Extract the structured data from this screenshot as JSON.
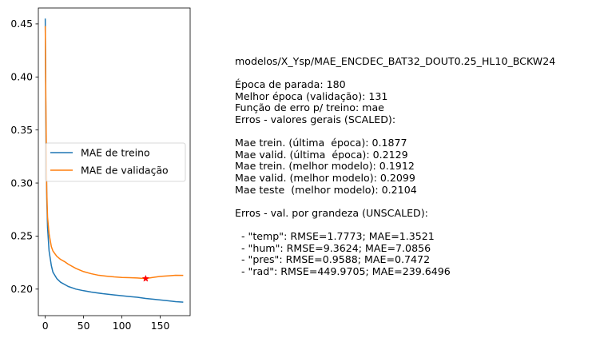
{
  "chart_data": {
    "type": "line",
    "title": "",
    "xlabel": "",
    "ylabel": "",
    "xlim": [
      -9,
      189
    ],
    "ylim": [
      0.175,
      0.465
    ],
    "x_ticks": [
      0,
      50,
      100,
      150
    ],
    "y_ticks": [
      0.2,
      0.25,
      0.3,
      0.35,
      0.4,
      0.45
    ],
    "y_tick_labels": [
      "0.20",
      "0.25",
      "0.30",
      "0.35",
      "0.40",
      "0.45"
    ],
    "grid": false,
    "legend_position": "center-left",
    "series": [
      {
        "name": "MAE de treino",
        "color": "#1f77b4",
        "points": [
          [
            0,
            0.455
          ],
          [
            1,
            0.34
          ],
          [
            2,
            0.285
          ],
          [
            3,
            0.258
          ],
          [
            5,
            0.236
          ],
          [
            8,
            0.222
          ],
          [
            10,
            0.216
          ],
          [
            15,
            0.21
          ],
          [
            20,
            0.2065
          ],
          [
            30,
            0.2025
          ],
          [
            40,
            0.2
          ],
          [
            50,
            0.1985
          ],
          [
            60,
            0.1972
          ],
          [
            75,
            0.1957
          ],
          [
            90,
            0.1945
          ],
          [
            100,
            0.1937
          ],
          [
            110,
            0.193
          ],
          [
            120,
            0.1923
          ],
          [
            131,
            0.1912
          ],
          [
            140,
            0.1905
          ],
          [
            150,
            0.1898
          ],
          [
            160,
            0.189
          ],
          [
            170,
            0.1882
          ],
          [
            180,
            0.1877
          ]
        ]
      },
      {
        "name": "MAE de validação",
        "color": "#ff7f0e",
        "points": [
          [
            0,
            0.448
          ],
          [
            1,
            0.36
          ],
          [
            2,
            0.292
          ],
          [
            3,
            0.268
          ],
          [
            5,
            0.252
          ],
          [
            8,
            0.24
          ],
          [
            10,
            0.236
          ],
          [
            15,
            0.231
          ],
          [
            20,
            0.228
          ],
          [
            25,
            0.226
          ],
          [
            30,
            0.2235
          ],
          [
            40,
            0.2195
          ],
          [
            50,
            0.2165
          ],
          [
            60,
            0.2145
          ],
          [
            70,
            0.213
          ],
          [
            80,
            0.2122
          ],
          [
            90,
            0.2115
          ],
          [
            100,
            0.211
          ],
          [
            110,
            0.2108
          ],
          [
            120,
            0.2105
          ],
          [
            131,
            0.2099
          ],
          [
            140,
            0.211
          ],
          [
            150,
            0.212
          ],
          [
            160,
            0.2125
          ],
          [
            170,
            0.213
          ],
          [
            180,
            0.2129
          ]
        ]
      }
    ],
    "marker": {
      "x": 131,
      "y": 0.2099,
      "color": "#ff0000",
      "symbol": "star"
    }
  },
  "info_text": {
    "lines": [
      "modelos/X_Ysp/MAE_ENCDEC_BAT32_DOUT0.25_HL10_BCKW24",
      "",
      "Época de parada: 180",
      "Melhor época (validação): 131",
      "Função de erro p/ treino: mae",
      "Erros - valores gerais (SCALED):",
      "",
      "Mae trein. (última  época): 0.1877",
      "Mae valid. (última  época): 0.2129",
      "Mae trein. (melhor modelo): 0.1912",
      "Mae valid. (melhor modelo): 0.2099",
      "Mae teste  (melhor modelo): 0.2104",
      "",
      "Erros - val. por grandeza (UNSCALED):",
      "",
      "  - \"temp\": RMSE=1.7773; MAE=1.3521",
      "  - \"hum\": RMSE=9.3624; MAE=7.0856",
      "  - \"pres\": RMSE=0.9588; MAE=0.7472",
      "  - \"rad\": RMSE=449.9705; MAE=239.6496"
    ]
  }
}
